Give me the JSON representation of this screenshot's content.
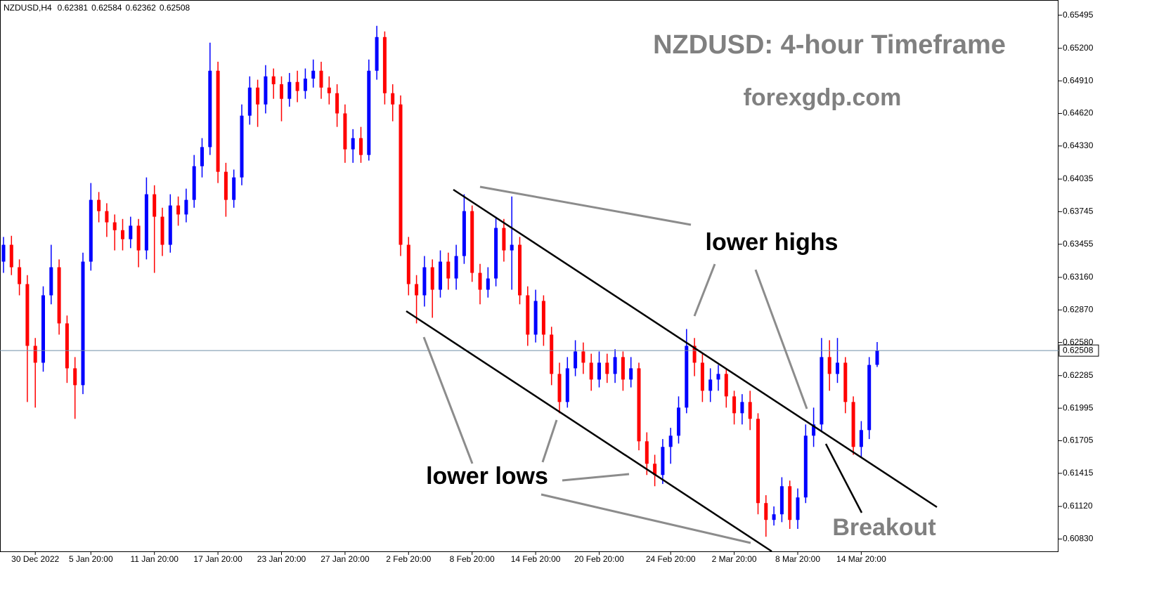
{
  "chart_data": {
    "type": "candlestick",
    "symbol": "NZDUSD,H4",
    "title": "NZDUSD: 4-hour Timeframe",
    "subtitle": "forexgdp.com",
    "annotations": {
      "lower_highs": "lower highs",
      "lower_lows": "lower lows",
      "breakout": "Breakout"
    },
    "up_color": "#0000ff",
    "down_color": "#ff0000",
    "ylim": [
      0.6072,
      0.6563
    ],
    "yticks": [
      {
        "value": 0.65495,
        "label": "0.65495"
      },
      {
        "value": 0.652,
        "label": "0.65200"
      },
      {
        "value": 0.6491,
        "label": "0.64910"
      },
      {
        "value": 0.6462,
        "label": "0.64620"
      },
      {
        "value": 0.6433,
        "label": "0.64330"
      },
      {
        "value": 0.64035,
        "label": "0.64035"
      },
      {
        "value": 0.63745,
        "label": "0.63745"
      },
      {
        "value": 0.63455,
        "label": "0.63455"
      },
      {
        "value": 0.6316,
        "label": "0.63160"
      },
      {
        "value": 0.6287,
        "label": "0.62870"
      },
      {
        "value": 0.6258,
        "label": "0.62580"
      },
      {
        "value": 0.62285,
        "label": "0.62285"
      },
      {
        "value": 0.61995,
        "label": "0.61995"
      },
      {
        "value": 0.61705,
        "label": "0.61705"
      },
      {
        "value": 0.61415,
        "label": "0.61415"
      },
      {
        "value": 0.6112,
        "label": "0.61120"
      },
      {
        "value": 0.6083,
        "label": "0.60830"
      }
    ],
    "categories": [
      null,
      null,
      null,
      null,
      "30 Dec 2022",
      null,
      null,
      null,
      null,
      null,
      null,
      "5 Jan 20:00",
      null,
      null,
      null,
      null,
      null,
      null,
      null,
      "11 Jan 20:00",
      null,
      null,
      null,
      null,
      null,
      null,
      null,
      "17 Jan 20:00",
      null,
      null,
      null,
      null,
      null,
      null,
      null,
      "23 Jan 20:00",
      null,
      null,
      null,
      null,
      null,
      null,
      null,
      "27 Jan 20:00",
      null,
      null,
      null,
      null,
      null,
      null,
      null,
      "2 Feb 20:00",
      null,
      null,
      null,
      null,
      null,
      null,
      null,
      "8 Feb 20:00",
      null,
      null,
      null,
      null,
      null,
      null,
      null,
      "14 Feb 20:00",
      null,
      null,
      null,
      null,
      null,
      null,
      null,
      "20 Feb 20:00",
      null,
      null,
      null,
      null,
      null,
      null,
      null,
      null,
      "24 Feb 20:00",
      null,
      null,
      null,
      null,
      null,
      null,
      null,
      "2 Mar 20:00",
      null,
      null,
      null,
      null,
      null,
      null,
      null,
      "8 Mar 20:00",
      null,
      null,
      null,
      null,
      null,
      null,
      null,
      "14 Mar 20:00",
      null,
      null
    ],
    "open": [
      0.633,
      0.6345,
      0.6325,
      0.631,
      0.6255,
      0.624,
      0.63,
      0.6325,
      0.6275,
      0.6235,
      0.622,
      0.633,
      0.6385,
      0.6375,
      0.6365,
      0.6358,
      0.635,
      0.6362,
      0.634,
      0.639,
      0.637,
      0.6345,
      0.638,
      0.6372,
      0.6385,
      0.6415,
      0.6432,
      0.65,
      0.641,
      0.6385,
      0.6405,
      0.646,
      0.6485,
      0.647,
      0.6495,
      0.6488,
      0.6475,
      0.649,
      0.6482,
      0.6493,
      0.65,
      0.6485,
      0.648,
      0.6462,
      0.643,
      0.644,
      0.6425,
      0.65,
      0.653,
      0.648,
      0.647,
      0.6345,
      0.631,
      0.63,
      0.6325,
      0.6305,
      0.633,
      0.6315,
      0.6335,
      0.6375,
      0.632,
      0.6305,
      0.6315,
      0.636,
      0.634,
      0.6345,
      0.63,
      0.6265,
      0.6295,
      0.6265,
      0.623,
      0.6205,
      0.6235,
      0.625,
      0.624,
      0.6225,
      0.624,
      0.623,
      0.6245,
      0.6225,
      0.6235,
      0.617,
      0.615,
      0.614,
      0.6165,
      0.6175,
      0.62,
      0.6255,
      0.624,
      0.6215,
      0.6225,
      0.623,
      0.621,
      0.6195,
      0.6205,
      0.619,
      0.6115,
      0.61,
      0.6105,
      0.613,
      0.61,
      0.612,
      0.6175,
      0.6185,
      0.6245,
      0.623,
      0.624,
      0.6205,
      0.6165,
      0.618,
      0.62381
    ],
    "high": [
      0.6352,
      0.6353,
      0.6332,
      0.6318,
      0.6262,
      0.6308,
      0.6345,
      0.6332,
      0.6282,
      0.6245,
      0.6338,
      0.64,
      0.6392,
      0.6382,
      0.6372,
      0.6368,
      0.637,
      0.6368,
      0.6405,
      0.6398,
      0.6378,
      0.639,
      0.6388,
      0.6395,
      0.6425,
      0.644,
      0.6525,
      0.6508,
      0.6418,
      0.6412,
      0.647,
      0.6495,
      0.6492,
      0.6505,
      0.6502,
      0.6495,
      0.6498,
      0.65,
      0.6502,
      0.651,
      0.6508,
      0.6495,
      0.6488,
      0.647,
      0.6448,
      0.645,
      0.651,
      0.654,
      0.6535,
      0.6488,
      0.6478,
      0.6352,
      0.6318,
      0.6335,
      0.6332,
      0.634,
      0.6338,
      0.6345,
      0.639,
      0.638,
      0.6328,
      0.6325,
      0.637,
      0.6368,
      0.6388,
      0.6352,
      0.6308,
      0.6305,
      0.63,
      0.6272,
      0.624,
      0.6245,
      0.626,
      0.6258,
      0.6248,
      0.625,
      0.6248,
      0.6252,
      0.625,
      0.6245,
      0.624,
      0.6178,
      0.6158,
      0.6172,
      0.6182,
      0.621,
      0.627,
      0.6262,
      0.6248,
      0.6235,
      0.6238,
      0.6235,
      0.6215,
      0.6212,
      0.6215,
      0.6195,
      0.6122,
      0.6112,
      0.6138,
      0.6135,
      0.6128,
      0.6185,
      0.62,
      0.6262,
      0.626,
      0.6262,
      0.6245,
      0.621,
      0.6188,
      0.6245,
      0.62584
    ],
    "low": [
      0.632,
      0.6318,
      0.63,
      0.6205,
      0.62,
      0.6232,
      0.6292,
      0.6265,
      0.6222,
      0.619,
      0.6212,
      0.6322,
      0.6365,
      0.6352,
      0.634,
      0.634,
      0.6342,
      0.6325,
      0.6332,
      0.632,
      0.6335,
      0.6338,
      0.6362,
      0.6365,
      0.6378,
      0.6405,
      0.6425,
      0.64,
      0.637,
      0.6378,
      0.6398,
      0.6452,
      0.645,
      0.6462,
      0.6475,
      0.6455,
      0.6468,
      0.6472,
      0.6475,
      0.6485,
      0.6475,
      0.647,
      0.645,
      0.6418,
      0.6418,
      0.6418,
      0.642,
      0.6492,
      0.647,
      0.6455,
      0.6335,
      0.63,
      0.6275,
      0.629,
      0.628,
      0.6298,
      0.6305,
      0.6305,
      0.6328,
      0.6312,
      0.6292,
      0.6298,
      0.6308,
      0.633,
      0.6305,
      0.6292,
      0.6255,
      0.6258,
      0.6255,
      0.622,
      0.6195,
      0.62,
      0.6228,
      0.623,
      0.6215,
      0.6218,
      0.6222,
      0.6222,
      0.6215,
      0.6218,
      0.6162,
      0.614,
      0.613,
      0.6132,
      0.615,
      0.6168,
      0.6195,
      0.6228,
      0.6205,
      0.6205,
      0.6215,
      0.62,
      0.6185,
      0.6185,
      0.618,
      0.6105,
      0.6085,
      0.6095,
      0.6098,
      0.6092,
      0.6092,
      0.6115,
      0.6165,
      0.6178,
      0.6215,
      0.6222,
      0.6195,
      0.6158,
      0.6155,
      0.6172,
      0.62362
    ],
    "close": [
      0.6345,
      0.6325,
      0.631,
      0.6255,
      0.624,
      0.63,
      0.6325,
      0.6275,
      0.6235,
      0.622,
      0.633,
      0.6385,
      0.6375,
      0.6365,
      0.6358,
      0.635,
      0.6362,
      0.634,
      0.639,
      0.637,
      0.6345,
      0.638,
      0.6372,
      0.6385,
      0.6415,
      0.6432,
      0.65,
      0.641,
      0.6385,
      0.6405,
      0.646,
      0.6485,
      0.647,
      0.6495,
      0.6488,
      0.6475,
      0.649,
      0.6482,
      0.6493,
      0.65,
      0.6485,
      0.648,
      0.6462,
      0.643,
      0.644,
      0.6425,
      0.65,
      0.653,
      0.648,
      0.647,
      0.6345,
      0.631,
      0.63,
      0.6325,
      0.6305,
      0.633,
      0.6315,
      0.6335,
      0.6375,
      0.632,
      0.6305,
      0.6315,
      0.636,
      0.634,
      0.6345,
      0.63,
      0.6265,
      0.6295,
      0.6265,
      0.623,
      0.6205,
      0.6235,
      0.625,
      0.624,
      0.6225,
      0.624,
      0.623,
      0.6245,
      0.6225,
      0.6235,
      0.617,
      0.615,
      0.614,
      0.6165,
      0.6175,
      0.62,
      0.6255,
      0.624,
      0.6215,
      0.6225,
      0.623,
      0.621,
      0.6195,
      0.6205,
      0.619,
      0.6115,
      0.61,
      0.6105,
      0.613,
      0.61,
      0.612,
      0.6175,
      0.6185,
      0.6245,
      0.623,
      0.624,
      0.6205,
      0.6165,
      0.618,
      0.6238,
      0.62508
    ]
  }
}
